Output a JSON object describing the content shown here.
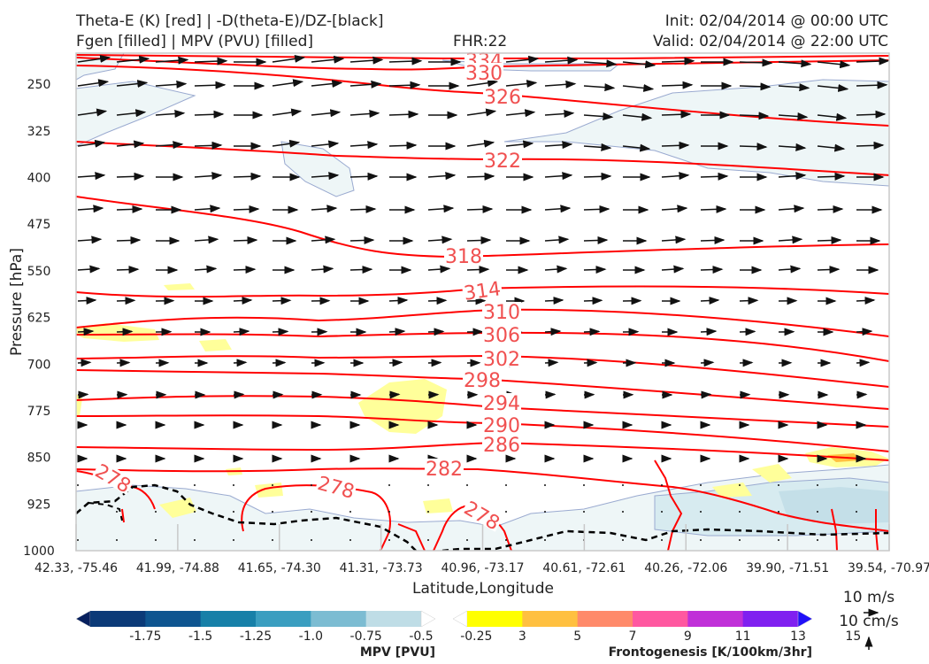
{
  "header": {
    "title_line1": "Theta-E (K) [red] | -D(theta-E)/DZ-[black]",
    "title_line2": "Fgen [filled] | MPV (PVU) [filled]",
    "fhr": "FHR:22",
    "init": "Init: 02/04/2014 @ 00:00 UTC",
    "valid": "Valid: 02/04/2014 @ 22:00 UTC"
  },
  "chart_data": {
    "type": "cross-section",
    "ylabel": "Pressure [hPa]",
    "xlabel": "Latitude,Longitude",
    "y_inverted": true,
    "ylim": [
      1000,
      200
    ],
    "y_ticks": [
      "250",
      "325",
      "400",
      "475",
      "550",
      "625",
      "700",
      "775",
      "850",
      "925",
      "1000"
    ],
    "x_ticks": [
      "42.33, -75.46",
      "41.99, -74.88",
      "41.65, -74.30",
      "41.31, -73.73",
      "40.96, -73.17",
      "40.61, -72.61",
      "40.26, -72.06",
      "39.90, -71.51",
      "39.54, -70.97"
    ],
    "theta_e_labels": [
      "334",
      "330",
      "326",
      "322",
      "318",
      "314",
      "310",
      "306",
      "302",
      "298",
      "294",
      "290",
      "286",
      "282",
      "278",
      "278",
      "278"
    ],
    "theta_e_color": "#ff0000",
    "wind_color": "#111111",
    "mpv_colorbar": {
      "label": "MPV [PVU]",
      "ticks": [
        "-1.75",
        "-1.5",
        "-1.25",
        "-1.0",
        "-0.75",
        "-0.5",
        "-0.25"
      ],
      "colors": [
        "#08205e",
        "#0b3a78",
        "#0e5590",
        "#1780a8",
        "#3a9ec0",
        "#7cbcd2",
        "#bfdde6",
        "#ffffff"
      ]
    },
    "fgen_colorbar": {
      "label": "Frontogenesis [K/100km/3hr]",
      "ticks": [
        "3",
        "5",
        "7",
        "9",
        "11",
        "13",
        "15"
      ],
      "colors": [
        "#ffffff",
        "#ffff00",
        "#ffc040",
        "#ff8a6a",
        "#ff58a0",
        "#c030d8",
        "#8020f0",
        "#2010f8"
      ]
    },
    "wind_key": {
      "horizontal": "10 m/s",
      "vertical": "10 cm/s"
    }
  }
}
